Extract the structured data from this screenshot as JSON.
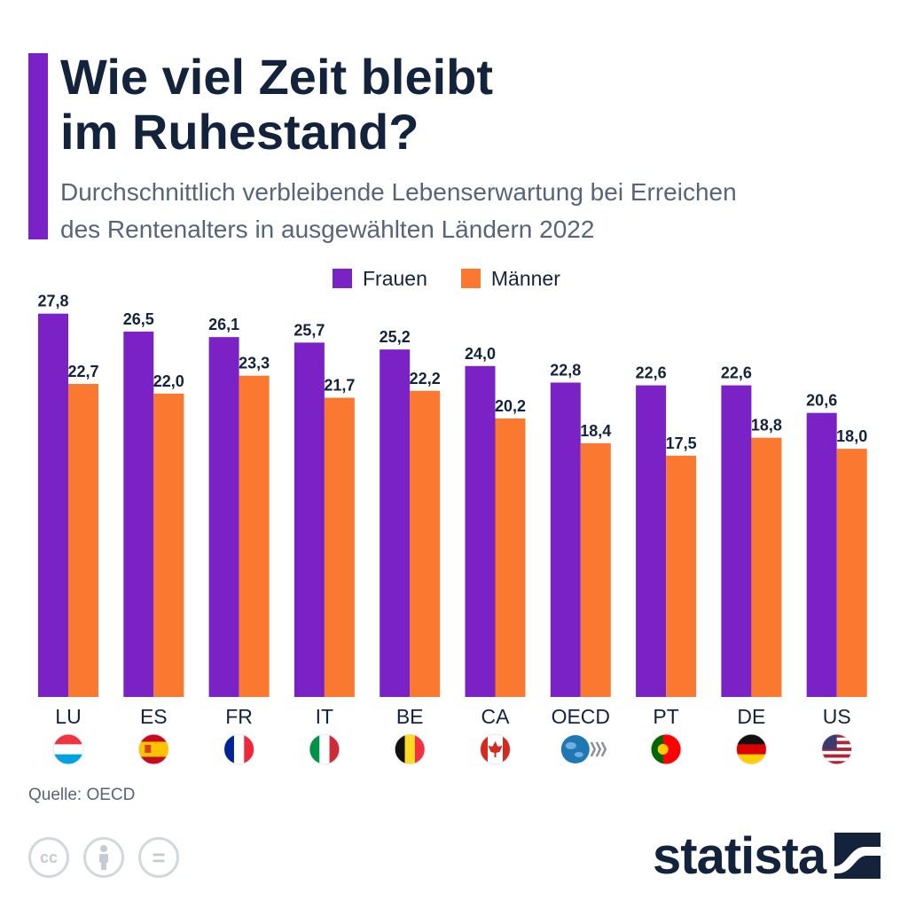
{
  "header": {
    "title_line1": "Wie viel Zeit bleibt",
    "title_line2": "im Ruhestand?",
    "subtitle_line1": "Durchschnittlich verbleibende Lebenserwartung bei Erreichen",
    "subtitle_line2": "des Rentenalters in ausgewählten Ländern 2022"
  },
  "legend": {
    "women_label": "Frauen",
    "men_label": "Männer"
  },
  "colors": {
    "women": "#7b22c6",
    "men": "#fb7830",
    "accent": "#7b22c6",
    "text_dark": "#14233c",
    "text_muted": "#56657a"
  },
  "chart_data": {
    "type": "bar",
    "title": "Wie viel Zeit bleibt im Ruhestand?",
    "subtitle": "Durchschnittlich verbleibende Lebenserwartung bei Erreichen des Rentenalters in ausgewählten Ländern 2022",
    "categories": [
      "LU",
      "ES",
      "FR",
      "IT",
      "BE",
      "CA",
      "OECD",
      "PT",
      "DE",
      "US"
    ],
    "series": [
      {
        "name": "Frauen",
        "values": [
          27.8,
          26.5,
          26.1,
          25.7,
          25.2,
          24.0,
          22.8,
          22.6,
          22.6,
          20.6
        ],
        "labels": [
          "27,8",
          "26,5",
          "26,1",
          "25,7",
          "25,2",
          "24,0",
          "22,8",
          "22,6",
          "22,6",
          "20,6"
        ]
      },
      {
        "name": "Männer",
        "values": [
          22.7,
          22.0,
          23.3,
          21.7,
          22.2,
          20.2,
          18.4,
          17.5,
          18.8,
          18.0
        ],
        "labels": [
          "22,7",
          "22,0",
          "23,3",
          "21,7",
          "22,2",
          "20,2",
          "18,4",
          "17,5",
          "18,8",
          "18,0"
        ]
      }
    ],
    "xlabel": "",
    "ylabel": "",
    "ylim": [
      0,
      28
    ],
    "grid": false,
    "legend_position": "top-center"
  },
  "flags": [
    {
      "code": "LU",
      "icon": "flag-luxembourg-icon"
    },
    {
      "code": "ES",
      "icon": "flag-spain-icon"
    },
    {
      "code": "FR",
      "icon": "flag-france-icon"
    },
    {
      "code": "IT",
      "icon": "flag-italy-icon"
    },
    {
      "code": "BE",
      "icon": "flag-belgium-icon"
    },
    {
      "code": "CA",
      "icon": "flag-canada-icon"
    },
    {
      "code": "OECD",
      "icon": "oecd-logo-icon"
    },
    {
      "code": "PT",
      "icon": "flag-portugal-icon"
    },
    {
      "code": "DE",
      "icon": "flag-germany-icon"
    },
    {
      "code": "US",
      "icon": "flag-usa-icon"
    }
  ],
  "footer": {
    "source": "Quelle: OECD",
    "brand": "statista",
    "license_icons": [
      "cc-icon",
      "attribution-icon",
      "no-derivatives-icon"
    ],
    "cc_text": "cc",
    "nd_text": "="
  }
}
